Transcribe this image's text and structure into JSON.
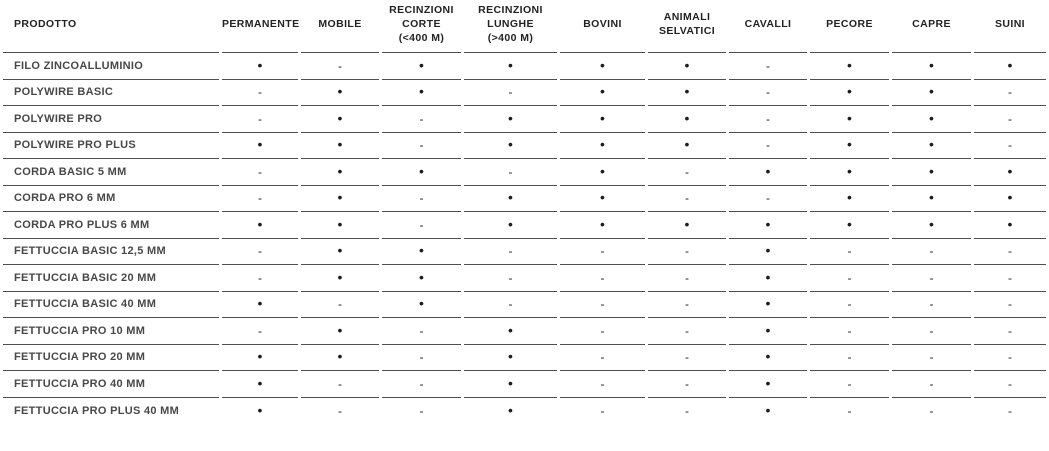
{
  "colors": {
    "background": "#ffffff",
    "header_text": "#232323",
    "label_text": "#484848",
    "marker": "#1d1d1d",
    "separator": "#4e4e4e"
  },
  "table": {
    "symbols": {
      "present": "•",
      "absent": "-"
    },
    "columns": [
      "PRODOTTO",
      "PERMANENTE",
      "MOBILE",
      "RECINZIONI\nCORTE\n(<400 M)",
      "RECINZIONI\nLUNGHE\n(>400 M)",
      "BOVINI",
      "ANIMALI\nSELVATICI",
      "CAVALLI",
      "PECORE",
      "CAPRE",
      "SUINI"
    ],
    "rows": [
      {
        "product": "FILO ZINCOALLUMINIO",
        "values": [
          "•",
          "-",
          "•",
          "•",
          "•",
          "•",
          "-",
          "•",
          "•",
          "•"
        ]
      },
      {
        "product": "POLYWIRE BASIC",
        "values": [
          "-",
          "•",
          "•",
          "-",
          "•",
          "•",
          "-",
          "•",
          "•",
          "-"
        ]
      },
      {
        "product": "POLYWIRE PRO",
        "values": [
          "-",
          "•",
          "-",
          "•",
          "•",
          "•",
          "-",
          "•",
          "•",
          "-"
        ]
      },
      {
        "product": "POLYWIRE PRO PLUS",
        "values": [
          "•",
          "•",
          "-",
          "•",
          "•",
          "•",
          "-",
          "•",
          "•",
          "-"
        ]
      },
      {
        "product": "CORDA BASIC 5 MM",
        "values": [
          "-",
          "•",
          "•",
          "-",
          "•",
          "-",
          "•",
          "•",
          "•",
          "•"
        ]
      },
      {
        "product": "CORDA PRO 6 MM",
        "values": [
          "-",
          "•",
          "-",
          "•",
          "•",
          "-",
          "-",
          "•",
          "•",
          "•"
        ]
      },
      {
        "product": "CORDA PRO PLUS 6 MM",
        "values": [
          "•",
          "•",
          "-",
          "•",
          "•",
          "•",
          "•",
          "•",
          "•",
          "•"
        ]
      },
      {
        "product": "FETTUCCIA BASIC 12,5 MM",
        "values": [
          "-",
          "•",
          "•",
          "-",
          "-",
          "-",
          "•",
          "-",
          "-",
          "-"
        ]
      },
      {
        "product": "FETTUCCIA BASIC 20 MM",
        "values": [
          "-",
          "•",
          "•",
          "-",
          "-",
          "-",
          "•",
          "-",
          "-",
          "-"
        ]
      },
      {
        "product": "FETTUCCIA BASIC 40 MM",
        "values": [
          "•",
          "-",
          "•",
          "-",
          "-",
          "-",
          "•",
          "-",
          "-",
          "-"
        ]
      },
      {
        "product": "FETTUCCIA PRO 10 MM",
        "values": [
          "-",
          "•",
          "-",
          "•",
          "-",
          "-",
          "•",
          "-",
          "-",
          "-"
        ]
      },
      {
        "product": "FETTUCCIA PRO 20 MM",
        "values": [
          "•",
          "•",
          "-",
          "•",
          "-",
          "-",
          "•",
          "-",
          "-",
          "-"
        ]
      },
      {
        "product": "FETTUCCIA PRO 40 MM",
        "values": [
          "•",
          "-",
          "-",
          "•",
          "-",
          "-",
          "•",
          "-",
          "-",
          "-"
        ]
      },
      {
        "product": "FETTUCCIA PRO PLUS 40 MM",
        "values": [
          "•",
          "-",
          "-",
          "•",
          "-",
          "-",
          "•",
          "-",
          "-",
          "-"
        ]
      }
    ]
  }
}
